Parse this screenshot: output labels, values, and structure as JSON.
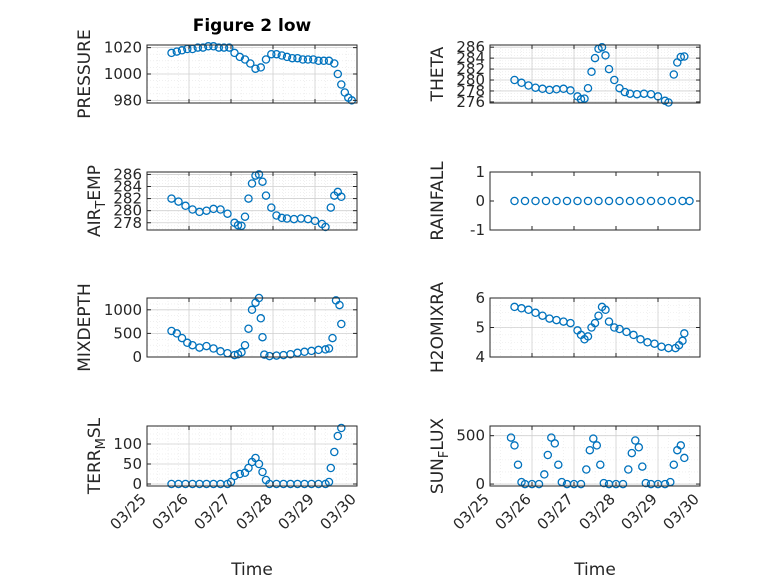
{
  "figure": {
    "title": "Figure 2 low",
    "x_label": "Time",
    "date_ticks": [
      "03/25",
      "03/26",
      "03/27",
      "03/28",
      "03/29",
      "03/30"
    ],
    "marker_color": "#0072BD"
  },
  "chart_data": [
    {
      "type": "scatter",
      "name": "PRESSURE",
      "ylabel": "PRESSURE",
      "ylim": [
        978,
        1022
      ],
      "yticks": [
        980,
        1000,
        1020
      ],
      "xlim": [
        "03/25",
        "03/30"
      ],
      "grid": true,
      "minor_grid": true,
      "points": [
        [
          "03/25 14:00",
          1016
        ],
        [
          "03/25 17:00",
          1017
        ],
        [
          "03/25 20:00",
          1018
        ],
        [
          "03/25 23:00",
          1019
        ],
        [
          "03/26 02:00",
          1019
        ],
        [
          "03/26 05:00",
          1020
        ],
        [
          "03/26 08:00",
          1020
        ],
        [
          "03/26 11:00",
          1021
        ],
        [
          "03/26 14:00",
          1021
        ],
        [
          "03/26 17:00",
          1020
        ],
        [
          "03/26 20:00",
          1020
        ],
        [
          "03/26 23:00",
          1020
        ],
        [
          "03/27 02:00",
          1016
        ],
        [
          "03/27 05:00",
          1013
        ],
        [
          "03/27 08:00",
          1011
        ],
        [
          "03/27 11:00",
          1008
        ],
        [
          "03/27 14:00",
          1004
        ],
        [
          "03/27 17:00",
          1005
        ],
        [
          "03/27 20:00",
          1011
        ],
        [
          "03/27 23:00",
          1015
        ],
        [
          "03/28 02:00",
          1015
        ],
        [
          "03/28 05:00",
          1014
        ],
        [
          "03/28 08:00",
          1013
        ],
        [
          "03/28 11:00",
          1012
        ],
        [
          "03/28 14:00",
          1012
        ],
        [
          "03/28 17:00",
          1011
        ],
        [
          "03/28 20:00",
          1011
        ],
        [
          "03/28 23:00",
          1011
        ],
        [
          "03/29 02:00",
          1010
        ],
        [
          "03/29 05:00",
          1010
        ],
        [
          "03/29 08:00",
          1010
        ],
        [
          "03/29 11:00",
          1008
        ],
        [
          "03/29 13:00",
          1000
        ],
        [
          "03/29 15:00",
          992
        ],
        [
          "03/29 17:00",
          986
        ],
        [
          "03/29 19:00",
          982
        ],
        [
          "03/29 21:00",
          980
        ]
      ]
    },
    {
      "type": "scatter",
      "name": "THETA",
      "ylabel": "THETA",
      "ylim": [
        275.8,
        286.4
      ],
      "yticks": [
        276,
        278,
        280,
        282,
        284,
        286
      ],
      "xlim": [
        "03/25",
        "03/30"
      ],
      "grid": true,
      "minor_grid": true,
      "points": [
        [
          "03/25 14:00",
          280
        ],
        [
          "03/25 18:00",
          279.5
        ],
        [
          "03/25 22:00",
          279
        ],
        [
          "03/26 02:00",
          278.6
        ],
        [
          "03/26 06:00",
          278.4
        ],
        [
          "03/26 10:00",
          278.2
        ],
        [
          "03/26 14:00",
          278.3
        ],
        [
          "03/26 18:00",
          278.4
        ],
        [
          "03/26 22:00",
          278.1
        ],
        [
          "03/27 02:00",
          277
        ],
        [
          "03/27 04:00",
          276.5
        ],
        [
          "03/27 06:00",
          276.6
        ],
        [
          "03/27 08:00",
          278.5
        ],
        [
          "03/27 10:00",
          281.5
        ],
        [
          "03/27 12:00",
          284
        ],
        [
          "03/27 14:00",
          285.7
        ],
        [
          "03/27 16:00",
          286
        ],
        [
          "03/27 18:00",
          284.5
        ],
        [
          "03/27 20:00",
          282
        ],
        [
          "03/27 23:00",
          280
        ],
        [
          "03/28 02:00",
          278.5
        ],
        [
          "03/28 05:00",
          277.8
        ],
        [
          "03/28 08:00",
          277.5
        ],
        [
          "03/28 12:00",
          277.4
        ],
        [
          "03/28 16:00",
          277.5
        ],
        [
          "03/28 20:00",
          277.4
        ],
        [
          "03/29 00:00",
          277
        ],
        [
          "03/29 04:00",
          276.2
        ],
        [
          "03/29 06:00",
          275.9
        ],
        [
          "03/29 09:00",
          281
        ],
        [
          "03/29 11:00",
          283.2
        ],
        [
          "03/29 13:00",
          284.2
        ],
        [
          "03/29 15:00",
          284.3
        ]
      ]
    },
    {
      "type": "scatter",
      "name": "AIR_TEMP",
      "ylabel": "AIR_TEMP",
      "ylim": [
        276.8,
        286.4
      ],
      "yticks": [
        278,
        280,
        282,
        284,
        286
      ],
      "xlim": [
        "03/25",
        "03/30"
      ],
      "grid": true,
      "minor_grid": true,
      "points": [
        [
          "03/25 14:00",
          282
        ],
        [
          "03/25 18:00",
          281.5
        ],
        [
          "03/25 22:00",
          280.8
        ],
        [
          "03/26 02:00",
          280.2
        ],
        [
          "03/26 06:00",
          279.8
        ],
        [
          "03/26 10:00",
          280
        ],
        [
          "03/26 14:00",
          280.3
        ],
        [
          "03/26 18:00",
          280.2
        ],
        [
          "03/26 22:00",
          279.5
        ],
        [
          "03/27 02:00",
          278
        ],
        [
          "03/27 04:00",
          277.6
        ],
        [
          "03/27 06:00",
          277.5
        ],
        [
          "03/27 08:00",
          279
        ],
        [
          "03/27 10:00",
          282
        ],
        [
          "03/27 12:00",
          284.5
        ],
        [
          "03/27 14:00",
          285.8
        ],
        [
          "03/27 16:00",
          286
        ],
        [
          "03/27 18:00",
          284.8
        ],
        [
          "03/27 20:00",
          282.5
        ],
        [
          "03/27 23:00",
          280.5
        ],
        [
          "03/28 02:00",
          279.2
        ],
        [
          "03/28 05:00",
          278.8
        ],
        [
          "03/28 08:00",
          278.7
        ],
        [
          "03/28 12:00",
          278.6
        ],
        [
          "03/28 16:00",
          278.7
        ],
        [
          "03/28 20:00",
          278.6
        ],
        [
          "03/29 00:00",
          278.3
        ],
        [
          "03/29 04:00",
          277.8
        ],
        [
          "03/29 06:00",
          277.3
        ],
        [
          "03/29 09:00",
          280.5
        ],
        [
          "03/29 11:00",
          282.5
        ],
        [
          "03/29 13:00",
          283.1
        ],
        [
          "03/29 15:00",
          282.3
        ]
      ]
    },
    {
      "type": "scatter",
      "name": "RAINFALL",
      "ylabel": "RAINFALL",
      "ylim": [
        -1,
        1
      ],
      "yticks": [
        -1,
        0,
        1
      ],
      "xlim": [
        "03/25",
        "03/30"
      ],
      "grid": false,
      "points": [
        [
          "03/25 14:00",
          0
        ],
        [
          "03/25 20:00",
          0
        ],
        [
          "03/26 02:00",
          0
        ],
        [
          "03/26 08:00",
          0
        ],
        [
          "03/26 14:00",
          0
        ],
        [
          "03/26 20:00",
          0
        ],
        [
          "03/27 02:00",
          0
        ],
        [
          "03/27 08:00",
          0
        ],
        [
          "03/27 14:00",
          0
        ],
        [
          "03/27 20:00",
          0
        ],
        [
          "03/28 02:00",
          0
        ],
        [
          "03/28 08:00",
          0
        ],
        [
          "03/28 14:00",
          0
        ],
        [
          "03/28 20:00",
          0
        ],
        [
          "03/29 02:00",
          0
        ],
        [
          "03/29 08:00",
          0
        ],
        [
          "03/29 14:00",
          0
        ],
        [
          "03/29 18:00",
          0
        ]
      ]
    },
    {
      "type": "scatter",
      "name": "MIXDEPTH",
      "ylabel": "MIXDEPTH",
      "ylim": [
        0,
        1250
      ],
      "yticks": [
        0,
        500,
        1000
      ],
      "xlim": [
        "03/25",
        "03/30"
      ],
      "grid": true,
      "minor_grid": true,
      "points": [
        [
          "03/25 14:00",
          550
        ],
        [
          "03/25 17:00",
          500
        ],
        [
          "03/25 20:00",
          400
        ],
        [
          "03/25 23:00",
          300
        ],
        [
          "03/26 02:00",
          250
        ],
        [
          "03/26 06:00",
          200
        ],
        [
          "03/26 10:00",
          230
        ],
        [
          "03/26 14:00",
          180
        ],
        [
          "03/26 18:00",
          120
        ],
        [
          "03/26 22:00",
          80
        ],
        [
          "03/27 02:00",
          40
        ],
        [
          "03/27 04:00",
          60
        ],
        [
          "03/27 06:00",
          100
        ],
        [
          "03/27 08:00",
          250
        ],
        [
          "03/27 10:00",
          600
        ],
        [
          "03/27 12:00",
          1000
        ],
        [
          "03/27 14:00",
          1150
        ],
        [
          "03/27 16:00",
          1250
        ],
        [
          "03/27 17:00",
          820
        ],
        [
          "03/27 18:00",
          420
        ],
        [
          "03/27 19:00",
          50
        ],
        [
          "03/27 22:00",
          20
        ],
        [
          "03/28 02:00",
          30
        ],
        [
          "03/28 06:00",
          40
        ],
        [
          "03/28 10:00",
          60
        ],
        [
          "03/28 14:00",
          90
        ],
        [
          "03/28 18:00",
          110
        ],
        [
          "03/28 22:00",
          130
        ],
        [
          "03/29 02:00",
          150
        ],
        [
          "03/29 06:00",
          160
        ],
        [
          "03/29 08:00",
          180
        ],
        [
          "03/29 10:00",
          400
        ],
        [
          "03/29 12:00",
          1200
        ],
        [
          "03/29 14:00",
          1100
        ],
        [
          "03/29 15:00",
          700
        ]
      ]
    },
    {
      "type": "scatter",
      "name": "H2OMIXRA",
      "ylabel": "H2OMIXRA",
      "ylim": [
        4,
        6
      ],
      "yticks": [
        4,
        5,
        6
      ],
      "xlim": [
        "03/25",
        "03/30"
      ],
      "grid": true,
      "minor_grid": true,
      "points": [
        [
          "03/25 14:00",
          5.7
        ],
        [
          "03/25 18:00",
          5.65
        ],
        [
          "03/25 22:00",
          5.6
        ],
        [
          "03/26 02:00",
          5.5
        ],
        [
          "03/26 06:00",
          5.4
        ],
        [
          "03/26 10:00",
          5.3
        ],
        [
          "03/26 14:00",
          5.25
        ],
        [
          "03/26 18:00",
          5.2
        ],
        [
          "03/26 22:00",
          5.15
        ],
        [
          "03/27 02:00",
          4.9
        ],
        [
          "03/27 04:00",
          4.75
        ],
        [
          "03/27 06:00",
          4.6
        ],
        [
          "03/27 08:00",
          4.7
        ],
        [
          "03/27 10:00",
          5.0
        ],
        [
          "03/27 12:00",
          5.15
        ],
        [
          "03/27 14:00",
          5.4
        ],
        [
          "03/27 16:00",
          5.7
        ],
        [
          "03/27 18:00",
          5.6
        ],
        [
          "03/27 20:00",
          5.2
        ],
        [
          "03/27 23:00",
          5.0
        ],
        [
          "03/28 02:00",
          4.95
        ],
        [
          "03/28 06:00",
          4.85
        ],
        [
          "03/28 10:00",
          4.75
        ],
        [
          "03/28 14:00",
          4.6
        ],
        [
          "03/28 18:00",
          4.5
        ],
        [
          "03/28 22:00",
          4.45
        ],
        [
          "03/29 02:00",
          4.35
        ],
        [
          "03/29 06:00",
          4.3
        ],
        [
          "03/29 10:00",
          4.3
        ],
        [
          "03/29 12:00",
          4.4
        ],
        [
          "03/29 14:00",
          4.55
        ],
        [
          "03/29 15:00",
          4.8
        ]
      ]
    },
    {
      "type": "scatter",
      "name": "TERR_MSL",
      "ylabel": "TERR_MSL",
      "ylim": [
        -5,
        145
      ],
      "yticks": [
        0,
        50,
        100
      ],
      "xlim": [
        "03/25",
        "03/30"
      ],
      "grid": true,
      "minor_grid": true,
      "points": [
        [
          "03/25 14:00",
          0
        ],
        [
          "03/25 18:00",
          0
        ],
        [
          "03/25 22:00",
          0
        ],
        [
          "03/26 02:00",
          0
        ],
        [
          "03/26 06:00",
          0
        ],
        [
          "03/26 10:00",
          0
        ],
        [
          "03/26 14:00",
          0
        ],
        [
          "03/26 18:00",
          0
        ],
        [
          "03/26 22:00",
          0
        ],
        [
          "03/27 00:00",
          5
        ],
        [
          "03/27 02:00",
          20
        ],
        [
          "03/27 05:00",
          25
        ],
        [
          "03/27 08:00",
          28
        ],
        [
          "03/27 10:00",
          40
        ],
        [
          "03/27 12:00",
          55
        ],
        [
          "03/27 14:00",
          65
        ],
        [
          "03/27 16:00",
          50
        ],
        [
          "03/27 18:00",
          30
        ],
        [
          "03/27 20:00",
          10
        ],
        [
          "03/27 22:00",
          0
        ],
        [
          "03/28 02:00",
          0
        ],
        [
          "03/28 06:00",
          0
        ],
        [
          "03/28 10:00",
          0
        ],
        [
          "03/28 14:00",
          0
        ],
        [
          "03/28 18:00",
          0
        ],
        [
          "03/28 22:00",
          0
        ],
        [
          "03/29 02:00",
          0
        ],
        [
          "03/29 06:00",
          0
        ],
        [
          "03/29 08:00",
          5
        ],
        [
          "03/29 09:00",
          40
        ],
        [
          "03/29 11:00",
          80
        ],
        [
          "03/29 13:00",
          120
        ],
        [
          "03/29 15:00",
          140
        ]
      ]
    },
    {
      "type": "scatter",
      "name": "SUN_FLUX",
      "ylabel": "SUN_FLUX",
      "ylim": [
        -20,
        600
      ],
      "yticks": [
        0,
        500
      ],
      "xlim": [
        "03/25",
        "03/30"
      ],
      "grid": true,
      "minor_grid": true,
      "points": [
        [
          "03/25 12:00",
          480
        ],
        [
          "03/25 14:00",
          400
        ],
        [
          "03/25 16:00",
          200
        ],
        [
          "03/25 18:00",
          20
        ],
        [
          "03/25 20:00",
          0
        ],
        [
          "03/26 00:00",
          0
        ],
        [
          "03/26 04:00",
          0
        ],
        [
          "03/26 07:00",
          100
        ],
        [
          "03/26 09:00",
          300
        ],
        [
          "03/26 11:00",
          480
        ],
        [
          "03/26 13:00",
          420
        ],
        [
          "03/26 15:00",
          200
        ],
        [
          "03/26 17:00",
          20
        ],
        [
          "03/26 20:00",
          0
        ],
        [
          "03/27 00:00",
          0
        ],
        [
          "03/27 04:00",
          0
        ],
        [
          "03/27 07:00",
          150
        ],
        [
          "03/27 09:00",
          350
        ],
        [
          "03/27 11:00",
          470
        ],
        [
          "03/27 13:00",
          400
        ],
        [
          "03/27 15:00",
          200
        ],
        [
          "03/27 17:00",
          10
        ],
        [
          "03/27 20:00",
          0
        ],
        [
          "03/28 00:00",
          0
        ],
        [
          "03/28 04:00",
          0
        ],
        [
          "03/28 07:00",
          150
        ],
        [
          "03/28 09:00",
          320
        ],
        [
          "03/28 11:00",
          450
        ],
        [
          "03/28 13:00",
          380
        ],
        [
          "03/28 15:00",
          180
        ],
        [
          "03/28 17:00",
          10
        ],
        [
          "03/28 20:00",
          0
        ],
        [
          "03/29 00:00",
          0
        ],
        [
          "03/29 04:00",
          0
        ],
        [
          "03/29 07:00",
          20
        ],
        [
          "03/29 09:00",
          200
        ],
        [
          "03/29 11:00",
          350
        ],
        [
          "03/29 13:00",
          400
        ],
        [
          "03/29 15:00",
          270
        ]
      ]
    }
  ]
}
